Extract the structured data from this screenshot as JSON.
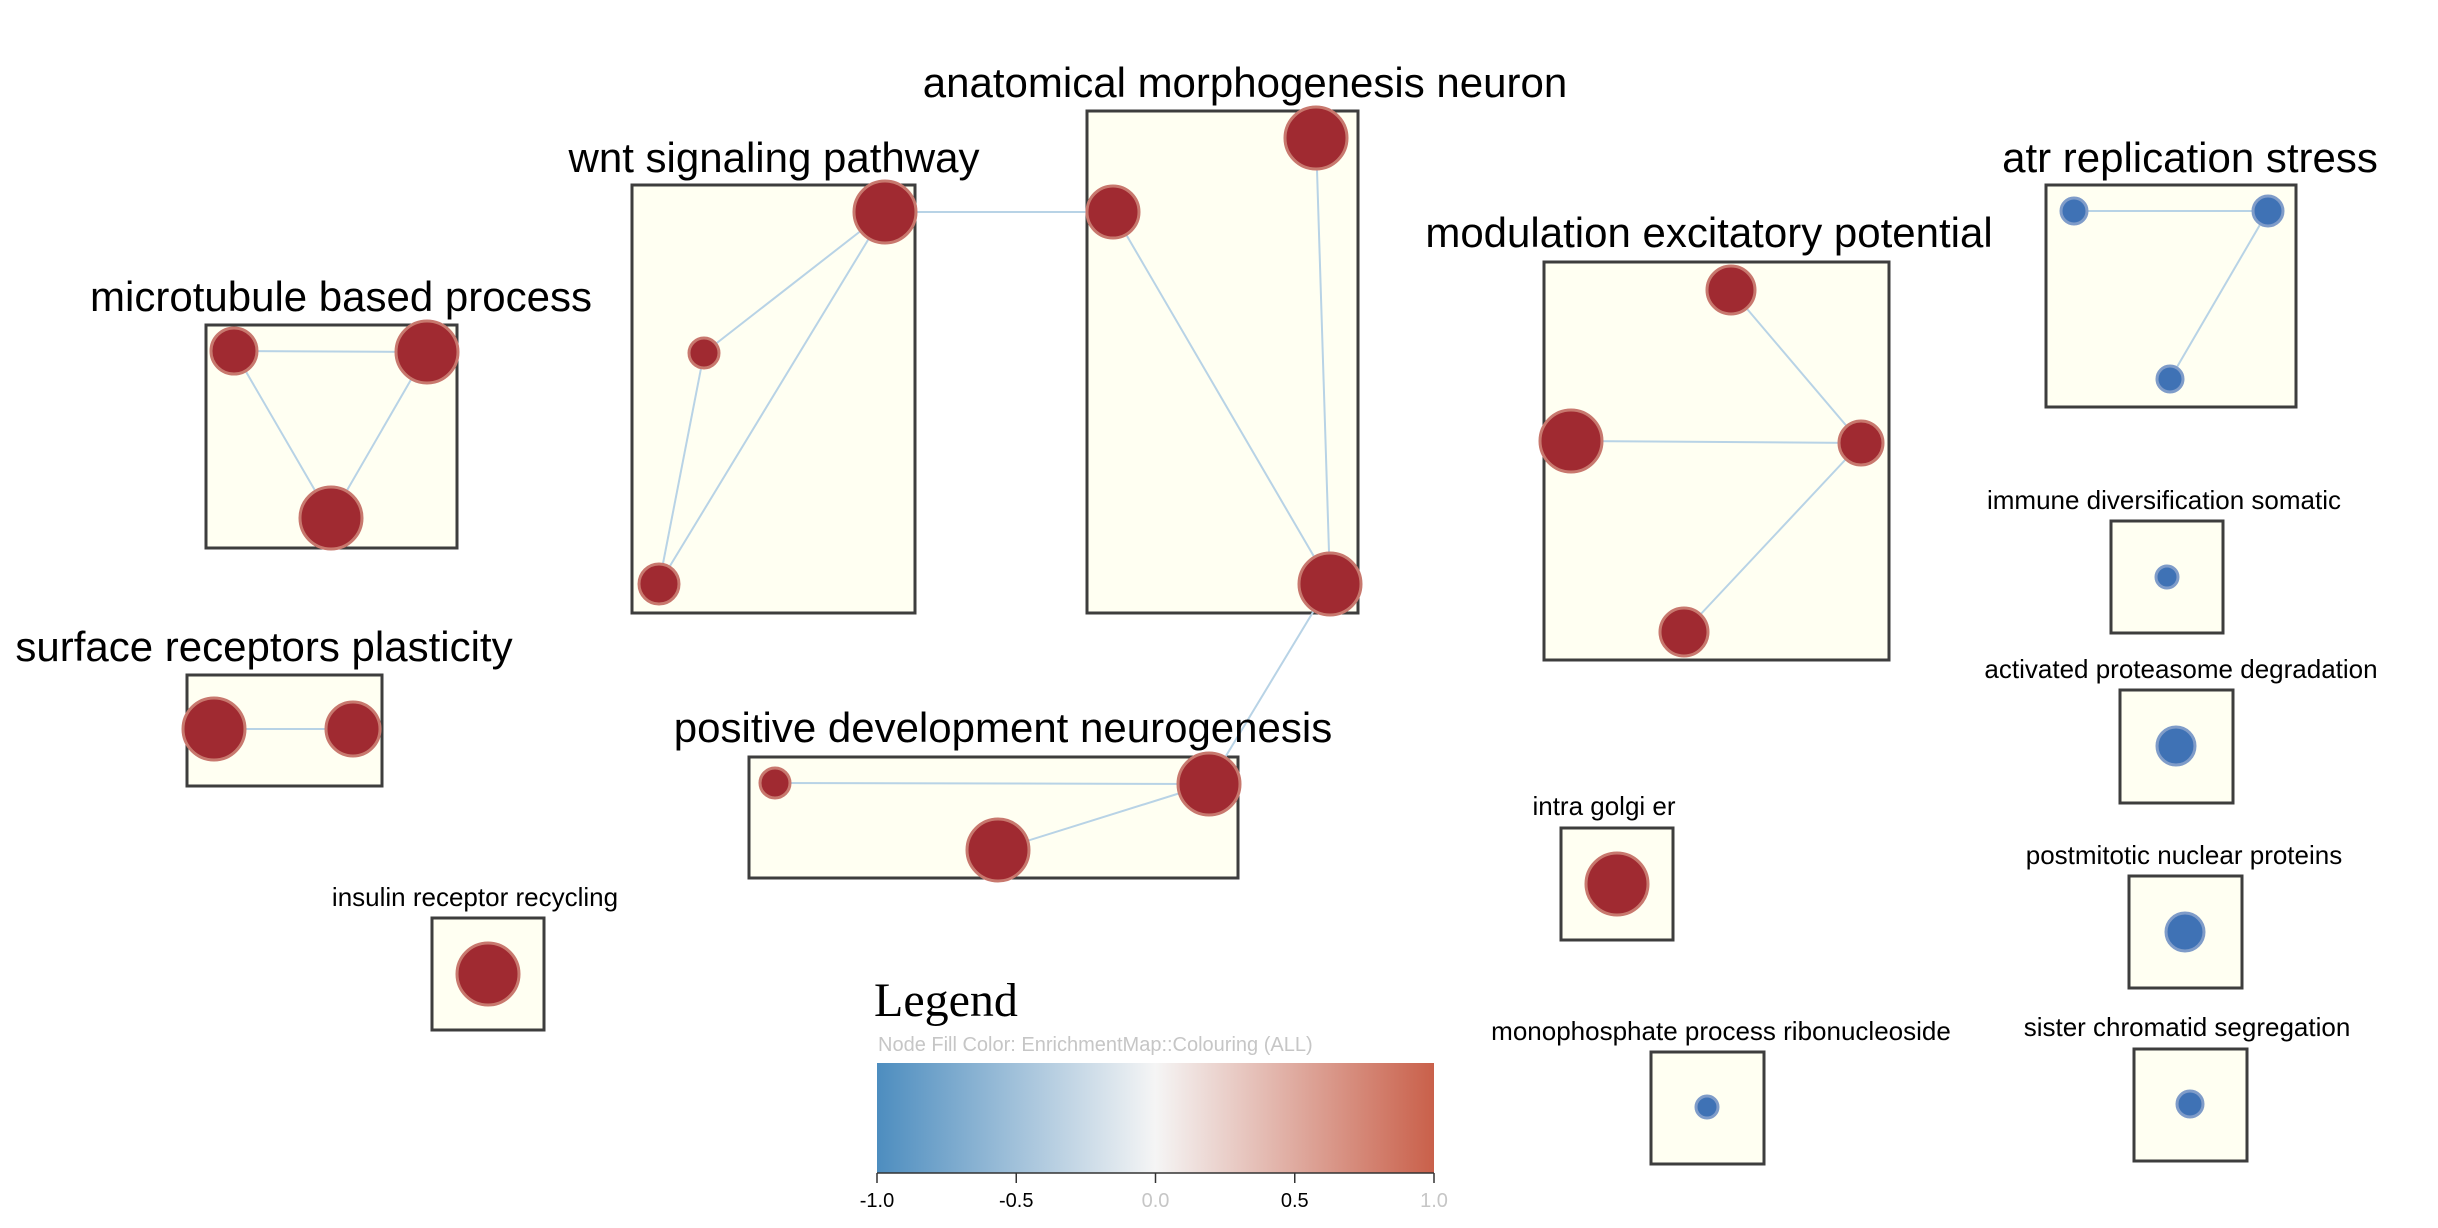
{
  "colors": {
    "box_fill": "#fffff2",
    "box_stroke": "#3d3d3d",
    "edge": "#b8d3e6",
    "node_up": "#a02a31",
    "node_up_stroke": "#c8786e",
    "node_down": "#3f72b5",
    "node_down_stroke": "#7f9cc9",
    "legend_low": "#4d8dbf",
    "legend_mid": "#f5f5f5",
    "legend_high": "#c9604a"
  },
  "clusters": [
    {
      "id": "microtubule",
      "label": "microtubule based process",
      "size": "large"
    },
    {
      "id": "wnt",
      "label": "wnt signaling pathway",
      "size": "large"
    },
    {
      "id": "anatomical",
      "label": "anatomical morphogenesis neuron",
      "size": "large"
    },
    {
      "id": "modulation",
      "label": "modulation excitatory potential",
      "size": "large"
    },
    {
      "id": "atr",
      "label": "atr replication stress",
      "size": "large"
    },
    {
      "id": "surface",
      "label": "surface receptors plasticity",
      "size": "large"
    },
    {
      "id": "positive",
      "label": "positive development neurogenesis",
      "size": "large"
    },
    {
      "id": "insulin",
      "label": "insulin receptor recycling",
      "size": "small"
    },
    {
      "id": "intra",
      "label": "intra golgi er",
      "size": "small"
    },
    {
      "id": "monophosphate",
      "label": "monophosphate process ribonucleoside",
      "size": "small"
    },
    {
      "id": "immune",
      "label": "immune diversification somatic",
      "size": "small"
    },
    {
      "id": "activated",
      "label": "activated proteasome degradation",
      "size": "small"
    },
    {
      "id": "postmitotic",
      "label": "postmitotic nuclear proteins",
      "size": "small"
    },
    {
      "id": "sister",
      "label": "sister chromatid segregation",
      "size": "small"
    }
  ],
  "nodes": [
    {
      "id": "mt1",
      "cluster": "microtubule",
      "direction": "up"
    },
    {
      "id": "mt2",
      "cluster": "microtubule",
      "direction": "up"
    },
    {
      "id": "mt3",
      "cluster": "microtubule",
      "direction": "up"
    },
    {
      "id": "w1",
      "cluster": "wnt",
      "direction": "up"
    },
    {
      "id": "w2",
      "cluster": "wnt",
      "direction": "up"
    },
    {
      "id": "w3",
      "cluster": "wnt",
      "direction": "up"
    },
    {
      "id": "a1",
      "cluster": "anatomical",
      "direction": "up"
    },
    {
      "id": "a2",
      "cluster": "anatomical",
      "direction": "up"
    },
    {
      "id": "a3",
      "cluster": "anatomical",
      "direction": "up"
    },
    {
      "id": "m1",
      "cluster": "modulation",
      "direction": "up"
    },
    {
      "id": "m2",
      "cluster": "modulation",
      "direction": "up"
    },
    {
      "id": "m3",
      "cluster": "modulation",
      "direction": "up"
    },
    {
      "id": "m4",
      "cluster": "modulation",
      "direction": "up"
    },
    {
      "id": "t1",
      "cluster": "atr",
      "direction": "down"
    },
    {
      "id": "t2",
      "cluster": "atr",
      "direction": "down"
    },
    {
      "id": "t3",
      "cluster": "atr",
      "direction": "down"
    },
    {
      "id": "s1",
      "cluster": "surface",
      "direction": "up"
    },
    {
      "id": "s2",
      "cluster": "surface",
      "direction": "up"
    },
    {
      "id": "p1",
      "cluster": "positive",
      "direction": "up"
    },
    {
      "id": "p2",
      "cluster": "positive",
      "direction": "up"
    },
    {
      "id": "p3",
      "cluster": "positive",
      "direction": "up"
    },
    {
      "id": "i1",
      "cluster": "insulin",
      "direction": "up"
    },
    {
      "id": "g1",
      "cluster": "intra",
      "direction": "up"
    },
    {
      "id": "r1",
      "cluster": "monophosphate",
      "direction": "down"
    },
    {
      "id": "im1",
      "cluster": "immune",
      "direction": "down"
    },
    {
      "id": "ac1",
      "cluster": "activated",
      "direction": "down"
    },
    {
      "id": "po1",
      "cluster": "postmitotic",
      "direction": "down"
    },
    {
      "id": "si1",
      "cluster": "sister",
      "direction": "down"
    }
  ],
  "edges": [
    [
      "mt1",
      "mt2"
    ],
    [
      "mt1",
      "mt3"
    ],
    [
      "mt2",
      "mt3"
    ],
    [
      "w1",
      "w2"
    ],
    [
      "w1",
      "w3"
    ],
    [
      "w2",
      "w3"
    ],
    [
      "w1",
      "a1"
    ],
    [
      "a1",
      "a3"
    ],
    [
      "a2",
      "a3"
    ],
    [
      "a3",
      "p3"
    ],
    [
      "m1",
      "m3"
    ],
    [
      "m2",
      "m3"
    ],
    [
      "m3",
      "m4"
    ],
    [
      "t1",
      "t2"
    ],
    [
      "t2",
      "t3"
    ],
    [
      "s1",
      "s2"
    ],
    [
      "p1",
      "p3"
    ],
    [
      "p2",
      "p3"
    ]
  ],
  "legend": {
    "title": "Legend",
    "subtitle": "Node Fill Color:  EnrichmentMap::Colouring (ALL)",
    "ticks": [
      {
        "value": -1.0,
        "label": "-1.0"
      },
      {
        "value": -0.5,
        "label": "-0.5"
      },
      {
        "value": 0.0,
        "label": "0.0"
      },
      {
        "value": 0.5,
        "label": "0.5"
      },
      {
        "value": 1.0,
        "label": "1.0"
      }
    ]
  }
}
